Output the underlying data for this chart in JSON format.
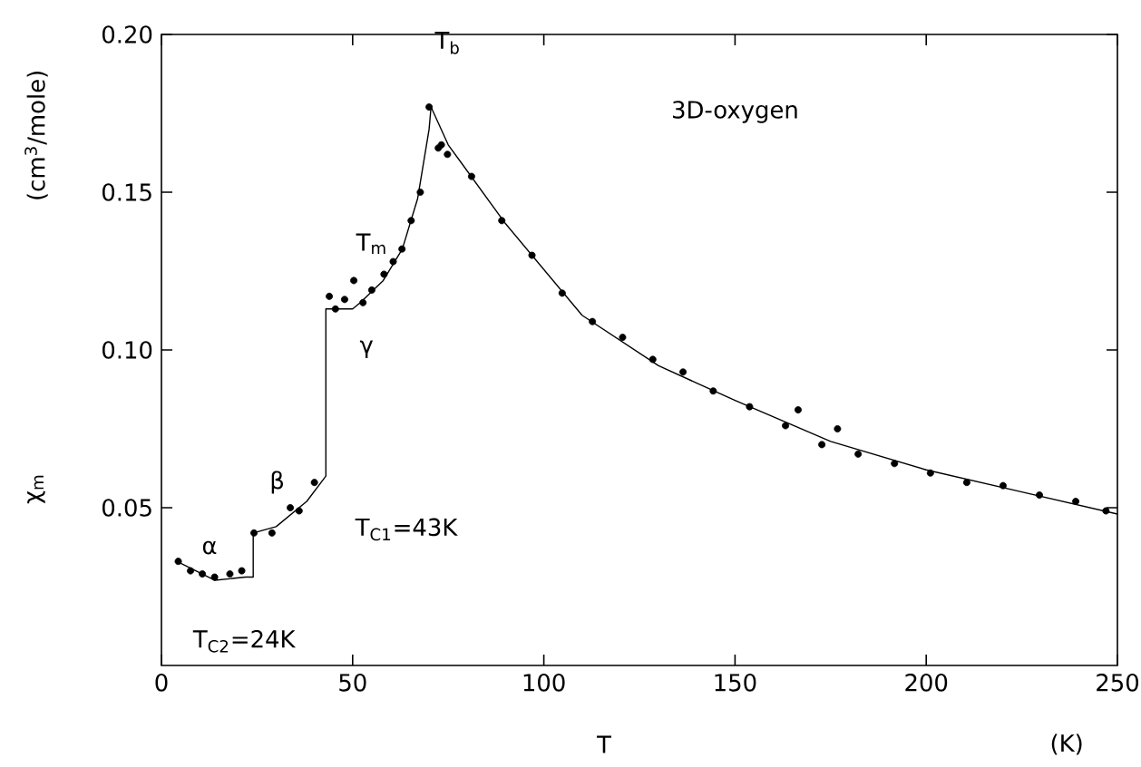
{
  "chart_data": {
    "type": "scatter",
    "title": "3D-oxygen",
    "xlabel": "T",
    "ylabel": "χ$_{m}$",
    "xlim": [
      0,
      250
    ],
    "xticks": [
      0,
      50,
      100,
      150,
      200,
      250
    ],
    "ylim": [
      0,
      0.2
    ],
    "yticks": [
      {
        "value": 0.05,
        "label": "0.05"
      },
      {
        "value": 0.1,
        "label": "0.10"
      },
      {
        "value": 0.15,
        "label": "0.15"
      },
      {
        "value": 0.2,
        "label": "0.20"
      }
    ],
    "grid": false,
    "series": [
      {
        "type": "scatter",
        "marker": "circle",
        "color": "#000000",
        "x": [
          4.4,
          7.6,
          10.7,
          13.9,
          17.9,
          21.0,
          24.2,
          28.9,
          33.7,
          36.0,
          40.0,
          43.9,
          45.5,
          47.9,
          50.3,
          52.7,
          55.0,
          58.2,
          60.6,
          62.9,
          65.3,
          67.7,
          70.0,
          72.4,
          74.8,
          73.2,
          81.1,
          89.0,
          96.9,
          104.8,
          112.7,
          120.6,
          128.5,
          136.4,
          144.3,
          153.8,
          163.2,
          166.5,
          172.7,
          176.8,
          182.2,
          191.7,
          201.1,
          210.6,
          220.1,
          229.6,
          239.1,
          247.0
        ],
        "values": [
          0.033,
          0.03,
          0.029,
          0.028,
          0.029,
          0.03,
          0.042,
          0.042,
          0.05,
          0.049,
          0.058,
          0.117,
          0.113,
          0.116,
          0.122,
          0.115,
          0.119,
          0.124,
          0.128,
          0.132,
          0.141,
          0.15,
          0.177,
          0.164,
          0.162,
          0.165,
          0.155,
          0.141,
          0.13,
          0.118,
          0.109,
          0.104,
          0.097,
          0.093,
          0.087,
          0.082,
          0.076,
          0.081,
          0.07,
          0.075,
          0.067,
          0.064,
          0.061,
          0.058,
          0.057,
          0.054,
          0.052,
          0.049
        ]
      },
      {
        "type": "line",
        "marker": "none",
        "line_style": "solid",
        "color": "#000000",
        "x": [
          4,
          14,
          22,
          24,
          24,
          30,
          38,
          43,
          43,
          50,
          52,
          58,
          63,
          67,
          70,
          70.5,
          75,
          90,
          110,
          130,
          150,
          175,
          200,
          225,
          250
        ],
        "values": [
          0.033,
          0.027,
          0.028,
          0.028,
          0.042,
          0.044,
          0.052,
          0.06,
          0.113,
          0.113,
          0.115,
          0.122,
          0.132,
          0.148,
          0.17,
          0.177,
          0.165,
          0.14,
          0.111,
          0.095,
          0.084,
          0.071,
          0.062,
          0.055,
          0.048
        ]
      }
    ],
    "annotations": [
      {
        "text": "T$_{b}$",
        "x": 70,
        "y": 0.177
      },
      {
        "text": "T$_{m}$",
        "x": 55,
        "y": 0.12
      },
      {
        "text": "γ",
        "x": 47,
        "y": 0.114
      },
      {
        "text": "β",
        "x": 35,
        "y": 0.05
      },
      {
        "text": "α",
        "x": 14,
        "y": 0.027
      },
      {
        "text": "T$_{C1}$=43K",
        "x": 43,
        "y": 0.06
      },
      {
        "text": "T$_{C2}$=24K",
        "x": 24,
        "y": 0.028
      },
      "(K)",
      "(cm$^{3}$/mole)"
    ]
  }
}
